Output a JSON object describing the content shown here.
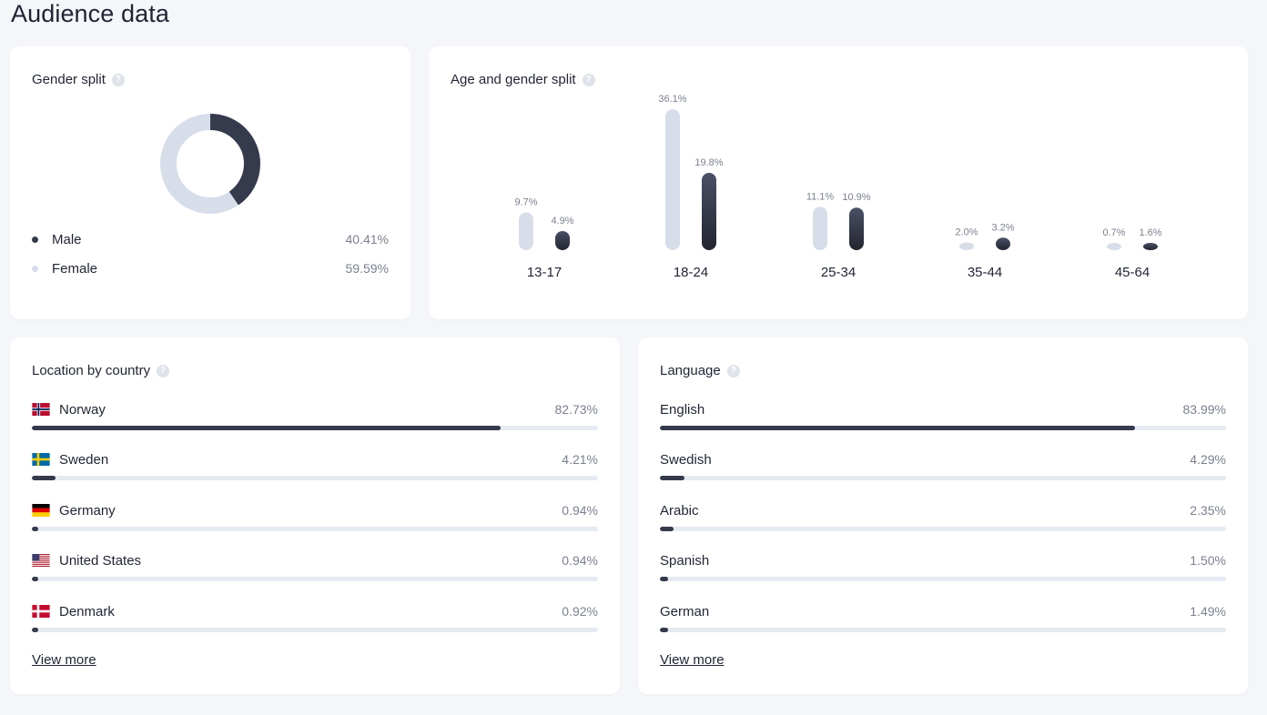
{
  "page": {
    "title": "Audience data"
  },
  "colors": {
    "male": "#353a4c",
    "female": "#d7deea",
    "track": "#e6eaf2"
  },
  "gender": {
    "title": "Gender split",
    "help_icon": "?",
    "items": [
      {
        "label": "Male",
        "value": "40.41%",
        "fraction": 0.4041
      },
      {
        "label": "Female",
        "value": "59.59%",
        "fraction": 0.5959
      }
    ]
  },
  "age": {
    "title": "Age and gender split",
    "help_icon": "?",
    "groups": [
      {
        "label": "13-17",
        "female": "9.7%",
        "female_value": 9.7,
        "male": "4.9%",
        "male_value": 4.9
      },
      {
        "label": "18-24",
        "female": "36.1%",
        "female_value": 36.1,
        "male": "19.8%",
        "male_value": 19.8
      },
      {
        "label": "25-34",
        "female": "11.1%",
        "female_value": 11.1,
        "male": "10.9%",
        "male_value": 10.9
      },
      {
        "label": "35-44",
        "female": "2.0%",
        "female_value": 2.0,
        "male": "3.2%",
        "male_value": 3.2
      },
      {
        "label": "45-64",
        "female": "0.7%",
        "female_value": 0.7,
        "male": "1.6%",
        "male_value": 1.6
      }
    ]
  },
  "location": {
    "title": "Location by country",
    "help_icon": "?",
    "items": [
      {
        "label": "Norway",
        "value": "82.73%",
        "fraction": 0.8273,
        "flag": "norway-flag-icon"
      },
      {
        "label": "Sweden",
        "value": "4.21%",
        "fraction": 0.0421,
        "flag": "sweden-flag-icon"
      },
      {
        "label": "Germany",
        "value": "0.94%",
        "fraction": 0.0094,
        "flag": "germany-flag-icon"
      },
      {
        "label": "United States",
        "value": "0.94%",
        "fraction": 0.0094,
        "flag": "usa-flag-icon"
      },
      {
        "label": "Denmark",
        "value": "0.92%",
        "fraction": 0.0092,
        "flag": "denmark-flag-icon"
      }
    ],
    "view_more": "View more"
  },
  "language": {
    "title": "Language",
    "help_icon": "?",
    "items": [
      {
        "label": "English",
        "value": "83.99%",
        "fraction": 0.8399
      },
      {
        "label": "Swedish",
        "value": "4.29%",
        "fraction": 0.0429
      },
      {
        "label": "Arabic",
        "value": "2.35%",
        "fraction": 0.0235
      },
      {
        "label": "Spanish",
        "value": "1.50%",
        "fraction": 0.015
      },
      {
        "label": "German",
        "value": "1.49%",
        "fraction": 0.0149
      }
    ],
    "view_more": "View more"
  }
}
